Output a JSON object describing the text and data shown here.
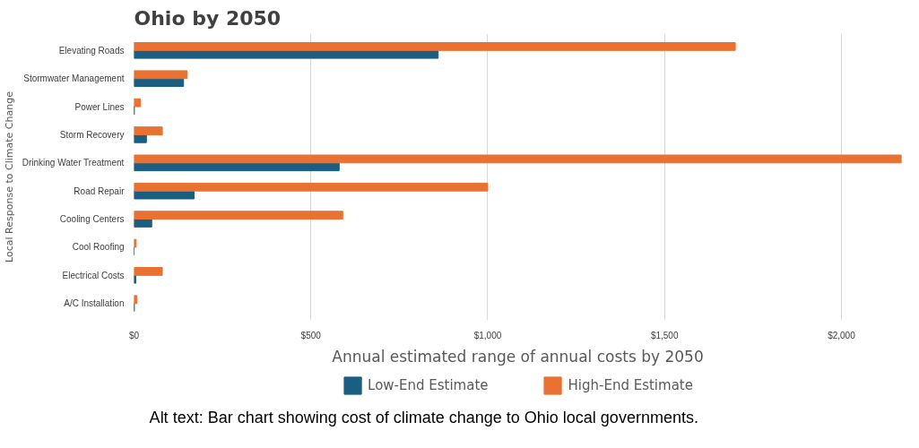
{
  "chart_data": {
    "type": "bar",
    "orientation": "horizontal",
    "title": "Ohio by 2050",
    "xlabel": "Annual estimated range of annual costs by 2050",
    "ylabel": "Local Response to Climate Change",
    "categories": [
      "Elevating Roads",
      "Stormwater Management",
      "Power Lines",
      "Storm Recovery",
      "Drinking Water Treatment",
      "Road Repair",
      "Cooling Centers",
      "Cool Roofing",
      "Electrical Costs",
      "A/C Installation"
    ],
    "series": [
      {
        "name": "Low-End Estimate",
        "color": "#1a5f82",
        "values": [
          860,
          140,
          1,
          35,
          580,
          170,
          50,
          0,
          5,
          1
        ]
      },
      {
        "name": "High-End Estimate",
        "color": "#e97132",
        "values": [
          1700,
          150,
          18,
          80,
          2170,
          1000,
          590,
          6,
          80,
          8
        ]
      }
    ],
    "xlim": [
      0,
      2170
    ],
    "xticks": [
      {
        "value": 0,
        "label": "$0"
      },
      {
        "value": 500,
        "label": "$500"
      },
      {
        "value": 1000,
        "label": "$1,000"
      },
      {
        "value": 1500,
        "label": "$1,500"
      },
      {
        "value": 2000,
        "label": "$2,000"
      }
    ],
    "grid": "x",
    "legend": "bottom",
    "annotations": [
      "Alt text: Bar chart showing cost of climate change to Ohio local governments."
    ]
  }
}
